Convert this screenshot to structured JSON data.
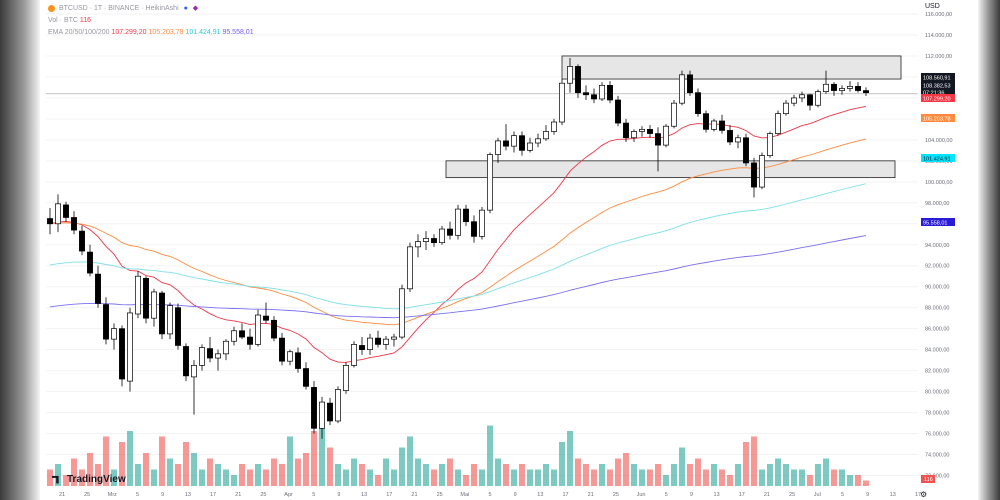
{
  "legend": {
    "symbol": "BTCUSD · 1T · BINANCE · HeikinAshi",
    "volume_label": "Vol · BTC",
    "volume_value": "116",
    "ema_label": "EMA 20/50/100/200",
    "ema20": "107.299,20",
    "ema50": "105.203,78",
    "ema100": "101.424,91",
    "ema200": "95.558,01"
  },
  "currency": "USD",
  "logo_text": "TradingView",
  "colors": {
    "up": "#ffffff",
    "down": "#000000",
    "vol_up": "#26a69a",
    "vol_down": "#ef5350",
    "ema20": "#f23645",
    "ema50": "#ff8a3d",
    "ema100": "#7fe0e8",
    "ema200": "#7b6ff0"
  },
  "chart_data": {
    "type": "candlestick",
    "interval": "1 day (Heikin Ashi)",
    "ylim": [
      71000,
      116000
    ],
    "y_ticks": [
      "116.000,00",
      "114.000,00",
      "112.000,00",
      "110.000,00",
      "108.000,00",
      "106.000,00",
      "104.000,00",
      "102.000,00",
      "100.000,00",
      "98.000,00",
      "96.000,00",
      "94.000,00",
      "92.000,00",
      "90.000,00",
      "88.000,00",
      "86.000,00",
      "84.000,00",
      "82.000,00",
      "80.000,00",
      "78.000,00",
      "76.000,00",
      "74.000,00",
      "72.000,00"
    ],
    "x_ticks": [
      "21",
      "25",
      "Mrz",
      "5",
      "9",
      "13",
      "17",
      "21",
      "25",
      "Apr",
      "5",
      "9",
      "13",
      "17",
      "21",
      "25",
      "Mai",
      "5",
      "9",
      "13",
      "17",
      "21",
      "25",
      "Jun",
      "5",
      "9",
      "13",
      "17",
      "21",
      "25",
      "Jul",
      "5",
      "9",
      "13",
      "17"
    ],
    "price_labels": [
      {
        "text": "108.560,91",
        "kind": "price"
      },
      {
        "text": "108.382,53",
        "kind": "price"
      },
      {
        "text": "07:21:36",
        "kind": "countdown"
      },
      {
        "text": "107.299,20",
        "kind": "ema20"
      },
      {
        "text": "105.203,78",
        "kind": "ema50"
      },
      {
        "text": "101.424,91",
        "kind": "ema100"
      },
      {
        "text": "95.558,01",
        "kind": "ema200"
      }
    ],
    "resistance_zone": [
      109800,
      112000
    ],
    "support_zone": [
      100400,
      102000
    ],
    "horizontal_line": 108400,
    "volume_last": "116",
    "candles": [
      [
        96500,
        97500,
        95000,
        96000
      ],
      [
        96000,
        98800,
        95200,
        97900
      ],
      [
        97800,
        98100,
        96200,
        96600
      ],
      [
        96600,
        97200,
        95000,
        95400
      ],
      [
        95300,
        95800,
        93000,
        93400
      ],
      [
        93300,
        94000,
        91000,
        91300
      ],
      [
        91200,
        92000,
        88000,
        88400
      ],
      [
        88300,
        89000,
        84500,
        85000
      ],
      [
        85000,
        86500,
        84000,
        86000
      ],
      [
        86000,
        86300,
        80500,
        81200
      ],
      [
        81000,
        88000,
        80000,
        87500
      ],
      [
        87400,
        91500,
        87000,
        91000
      ],
      [
        90800,
        91000,
        86500,
        87000
      ],
      [
        87000,
        89800,
        86200,
        89500
      ],
      [
        89400,
        89600,
        85000,
        85500
      ],
      [
        85500,
        88500,
        85000,
        88200
      ],
      [
        88000,
        88400,
        84000,
        84400
      ],
      [
        84300,
        84600,
        81000,
        81500
      ],
      [
        81400,
        83000,
        77800,
        82500
      ],
      [
        82500,
        84500,
        82000,
        84200
      ],
      [
        84100,
        85200,
        82800,
        83200
      ],
      [
        83200,
        84000,
        82000,
        83600
      ],
      [
        83600,
        85000,
        83000,
        84800
      ],
      [
        84800,
        86200,
        84400,
        85800
      ],
      [
        85800,
        86500,
        85000,
        85200
      ],
      [
        85200,
        86000,
        84000,
        84500
      ],
      [
        84500,
        87800,
        84300,
        87300
      ],
      [
        87200,
        88500,
        86500,
        86800
      ],
      [
        86800,
        87200,
        84800,
        85100
      ],
      [
        85100,
        85600,
        82500,
        82900
      ],
      [
        82900,
        84000,
        82500,
        83800
      ],
      [
        83700,
        84200,
        81800,
        82200
      ],
      [
        82200,
        82800,
        80200,
        80500
      ],
      [
        80400,
        81000,
        76000,
        76500
      ],
      [
        76500,
        79500,
        75500,
        79000
      ],
      [
        78900,
        79400,
        76800,
        77200
      ],
      [
        77200,
        80500,
        77000,
        80200
      ],
      [
        80100,
        82800,
        79800,
        82500
      ],
      [
        82500,
        84800,
        82300,
        84500
      ],
      [
        84400,
        85200,
        83500,
        84000
      ],
      [
        84000,
        85500,
        83500,
        85100
      ],
      [
        85100,
        85800,
        84200,
        84500
      ],
      [
        84500,
        85300,
        84000,
        85000
      ],
      [
        85000,
        85500,
        84300,
        85200
      ],
      [
        85200,
        90200,
        85000,
        89800
      ],
      [
        89800,
        94200,
        89500,
        93800
      ],
      [
        93800,
        95000,
        92800,
        94300
      ],
      [
        94300,
        95300,
        93500,
        94600
      ],
      [
        94600,
        95000,
        93800,
        94200
      ],
      [
        94200,
        95800,
        94000,
        95500
      ],
      [
        95500,
        96200,
        94500,
        94900
      ],
      [
        94900,
        97800,
        94500,
        97400
      ],
      [
        97400,
        97800,
        95800,
        96200
      ],
      [
        96200,
        96800,
        94200,
        94800
      ],
      [
        94800,
        97600,
        94500,
        97300
      ],
      [
        97300,
        102800,
        97000,
        102600
      ],
      [
        102600,
        104200,
        101800,
        103900
      ],
      [
        103900,
        105500,
        103000,
        103400
      ],
      [
        103400,
        104800,
        102800,
        104400
      ],
      [
        104400,
        104800,
        102500,
        103000
      ],
      [
        103000,
        104200,
        102800,
        103700
      ],
      [
        103700,
        104600,
        103300,
        104100
      ],
      [
        104100,
        105400,
        103900,
        104800
      ],
      [
        104800,
        106000,
        104500,
        105700
      ],
      [
        105700,
        109800,
        105400,
        109400
      ],
      [
        109400,
        111800,
        108500,
        111000
      ],
      [
        111000,
        111200,
        108000,
        108500
      ],
      [
        108500,
        109200,
        107800,
        108300
      ],
      [
        108300,
        108900,
        107500,
        107900
      ],
      [
        107900,
        109500,
        107700,
        109200
      ],
      [
        109200,
        109600,
        107500,
        107800
      ],
      [
        107800,
        108200,
        105300,
        105600
      ],
      [
        105600,
        106000,
        103800,
        104200
      ],
      [
        104200,
        105000,
        103800,
        104800
      ],
      [
        104800,
        105300,
        104300,
        105000
      ],
      [
        105000,
        105400,
        104200,
        104600
      ],
      [
        104600,
        105200,
        101000,
        103500
      ],
      [
        103500,
        105500,
        103300,
        105300
      ],
      [
        105300,
        107800,
        105100,
        107500
      ],
      [
        107500,
        110600,
        107300,
        110200
      ],
      [
        110200,
        110600,
        108200,
        108500
      ],
      [
        108500,
        108900,
        106200,
        106500
      ],
      [
        106500,
        106800,
        104700,
        105000
      ],
      [
        105000,
        106000,
        104800,
        105800
      ],
      [
        105800,
        106400,
        104600,
        104900
      ],
      [
        104900,
        105400,
        103500,
        103800
      ],
      [
        103800,
        104500,
        103200,
        104200
      ],
      [
        104200,
        104600,
        101500,
        101800
      ],
      [
        101800,
        102300,
        98500,
        99500
      ],
      [
        99500,
        102800,
        99300,
        102500
      ],
      [
        102500,
        104800,
        102300,
        104600
      ],
      [
        104600,
        106800,
        104400,
        106500
      ],
      [
        106500,
        107800,
        106300,
        107500
      ],
      [
        107500,
        108300,
        107200,
        108000
      ],
      [
        108000,
        108600,
        107600,
        108300
      ],
      [
        108300,
        108400,
        106800,
        107300
      ],
      [
        107300,
        108800,
        107100,
        108600
      ],
      [
        108600,
        110600,
        108400,
        109300
      ],
      [
        109300,
        109500,
        108200,
        108700
      ],
      [
        108700,
        109200,
        108300,
        108900
      ],
      [
        108900,
        109600,
        108600,
        109100
      ],
      [
        109100,
        109500,
        108500,
        108700
      ],
      [
        108700,
        109000,
        108200,
        108500
      ]
    ],
    "volume": [
      3,
      4,
      2,
      5,
      3,
      6,
      4,
      9,
      3,
      8,
      10,
      4,
      6,
      3,
      9,
      5,
      4,
      8,
      6,
      3,
      5,
      4,
      3,
      2,
      4,
      3,
      4,
      3,
      5,
      4,
      9,
      5,
      6,
      10,
      12,
      7,
      4,
      3,
      5,
      4,
      3,
      2,
      5,
      3,
      7,
      9,
      5,
      4,
      3,
      4,
      5,
      3,
      2,
      4,
      3,
      11,
      5,
      4,
      3,
      4,
      3,
      3,
      4,
      3,
      8,
      10,
      5,
      4,
      3,
      4,
      3,
      5,
      6,
      4,
      3,
      3,
      4,
      2,
      4,
      7,
      4,
      5,
      3,
      4,
      3,
      2,
      4,
      8,
      9,
      3,
      4,
      5,
      4,
      3,
      3,
      2,
      4,
      5,
      3,
      3,
      2,
      2,
      1
    ]
  }
}
